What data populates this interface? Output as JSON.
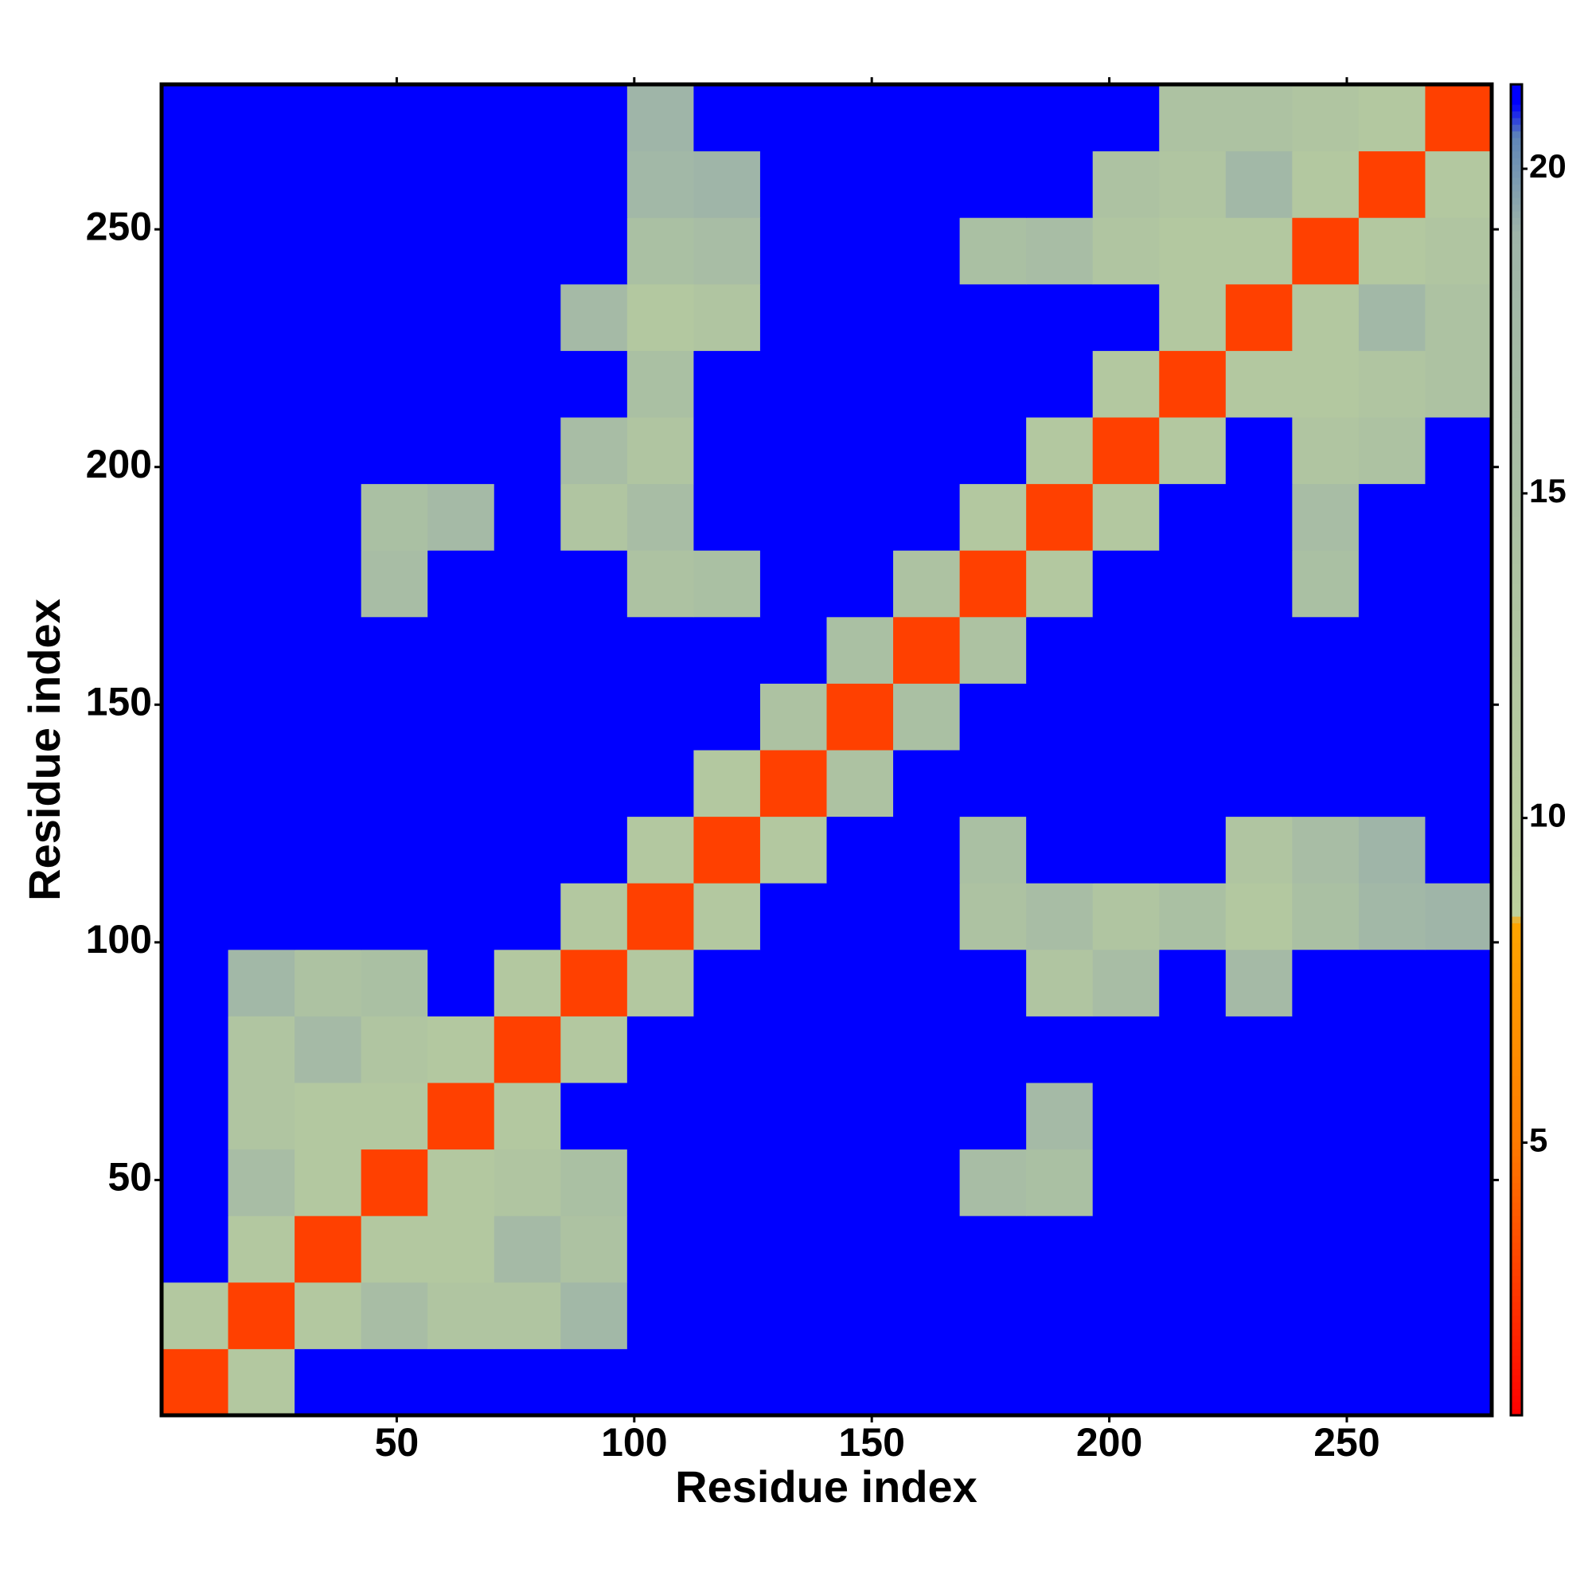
{
  "chart_data": {
    "type": "heatmap",
    "xlabel": "Residue index",
    "ylabel": "Residue index",
    "xlim": [
      0.5,
      280.5
    ],
    "ylim": [
      0.5,
      280.5
    ],
    "xticks": [
      50,
      100,
      150,
      200,
      250
    ],
    "yticks": [
      50,
      100,
      150,
      200,
      250
    ],
    "xbins": [
      0.5,
      14.5,
      28.5,
      42.5,
      56.5,
      70.5,
      84.5,
      98.5,
      112.5,
      126.5,
      140.5,
      154.5,
      168.5,
      182.5,
      196.5,
      210.5,
      224.5,
      238.5,
      252.5,
      266.5,
      280.5
    ],
    "ybins": [
      0.5,
      14.5,
      28.5,
      42.5,
      56.5,
      70.5,
      84.5,
      98.5,
      112.5,
      126.5,
      140.5,
      154.5,
      168.5,
      182.5,
      196.5,
      210.5,
      224.5,
      238.5,
      252.5,
      266.5,
      280.5
    ],
    "zlim": [
      0.8,
      21.3
    ],
    "zticks": [
      5,
      10,
      15,
      20
    ],
    "colorscale": [
      [
        0.8,
        "#ff0000"
      ],
      [
        5,
        "#ff7a00"
      ],
      [
        8.4,
        "#ffa500"
      ],
      [
        8.5,
        "#bdd19c"
      ],
      [
        19,
        "#9fb5a8"
      ],
      [
        20.5,
        "#5f86b8"
      ],
      [
        21,
        "#0000ff"
      ]
    ],
    "z": [
      [
        3,
        12,
        21,
        21,
        21,
        21,
        21,
        21,
        21,
        21,
        21,
        21,
        21,
        21,
        21,
        21,
        21,
        21,
        21,
        21
      ],
      [
        12,
        3,
        12,
        16,
        13,
        13,
        18,
        21,
        21,
        21,
        21,
        21,
        21,
        21,
        21,
        21,
        21,
        21,
        21,
        21
      ],
      [
        21,
        12,
        3,
        12,
        12,
        17,
        14,
        21,
        21,
        21,
        21,
        21,
        21,
        21,
        21,
        21,
        21,
        21,
        21,
        21
      ],
      [
        21,
        16,
        12,
        3,
        12,
        13,
        15,
        21,
        21,
        21,
        21,
        21,
        16,
        15,
        21,
        21,
        21,
        21,
        21,
        21
      ],
      [
        21,
        13,
        12,
        12,
        3,
        12,
        21,
        21,
        21,
        21,
        21,
        21,
        21,
        17,
        21,
        21,
        21,
        21,
        21,
        21
      ],
      [
        21,
        13,
        17,
        13,
        12,
        3,
        12,
        21,
        21,
        21,
        21,
        21,
        21,
        21,
        21,
        21,
        21,
        21,
        21,
        21
      ],
      [
        21,
        18,
        14,
        15,
        21,
        12,
        3,
        12,
        21,
        21,
        21,
        21,
        21,
        13,
        16,
        21,
        17,
        21,
        21,
        21
      ],
      [
        21,
        21,
        21,
        21,
        21,
        21,
        12,
        3,
        12,
        21,
        21,
        21,
        14,
        16,
        13,
        15,
        12,
        15,
        18,
        19
      ],
      [
        21,
        21,
        21,
        21,
        21,
        21,
        21,
        12,
        3,
        12,
        21,
        21,
        15,
        21,
        21,
        21,
        13,
        16,
        19,
        21
      ],
      [
        21,
        21,
        21,
        21,
        21,
        21,
        21,
        21,
        12,
        3,
        14,
        21,
        21,
        21,
        21,
        21,
        21,
        21,
        21,
        21
      ],
      [
        21,
        21,
        21,
        21,
        21,
        21,
        21,
        21,
        21,
        14,
        3,
        15,
        21,
        21,
        21,
        21,
        21,
        21,
        21,
        21
      ],
      [
        21,
        21,
        21,
        21,
        21,
        21,
        21,
        21,
        21,
        21,
        15,
        3,
        14,
        21,
        21,
        21,
        21,
        21,
        21,
        21
      ],
      [
        21,
        21,
        21,
        16,
        21,
        21,
        21,
        14,
        15,
        21,
        21,
        14,
        3,
        12,
        21,
        21,
        21,
        15,
        21,
        21
      ],
      [
        21,
        21,
        21,
        15,
        17,
        21,
        13,
        16,
        21,
        21,
        21,
        21,
        12,
        3,
        12,
        21,
        21,
        16,
        21,
        21
      ],
      [
        21,
        21,
        21,
        21,
        21,
        21,
        16,
        13,
        21,
        21,
        21,
        21,
        21,
        12,
        3,
        12,
        21,
        13,
        14,
        21
      ],
      [
        21,
        21,
        21,
        21,
        21,
        21,
        21,
        15,
        21,
        21,
        21,
        21,
        21,
        21,
        12,
        3,
        12,
        12,
        13,
        14
      ],
      [
        21,
        21,
        21,
        21,
        21,
        21,
        17,
        12,
        13,
        21,
        21,
        21,
        21,
        21,
        21,
        12,
        3,
        12,
        18,
        14
      ],
      [
        21,
        21,
        21,
        21,
        21,
        21,
        21,
        15,
        16,
        21,
        21,
        21,
        15,
        16,
        13,
        12,
        12,
        3,
        12,
        13
      ],
      [
        21,
        21,
        21,
        21,
        21,
        21,
        21,
        18,
        19,
        21,
        21,
        21,
        21,
        21,
        14,
        13,
        18,
        12,
        3,
        12
      ],
      [
        21,
        21,
        21,
        21,
        21,
        21,
        21,
        19,
        21,
        21,
        21,
        21,
        21,
        21,
        21,
        14,
        14,
        13,
        12,
        3
      ]
    ]
  }
}
